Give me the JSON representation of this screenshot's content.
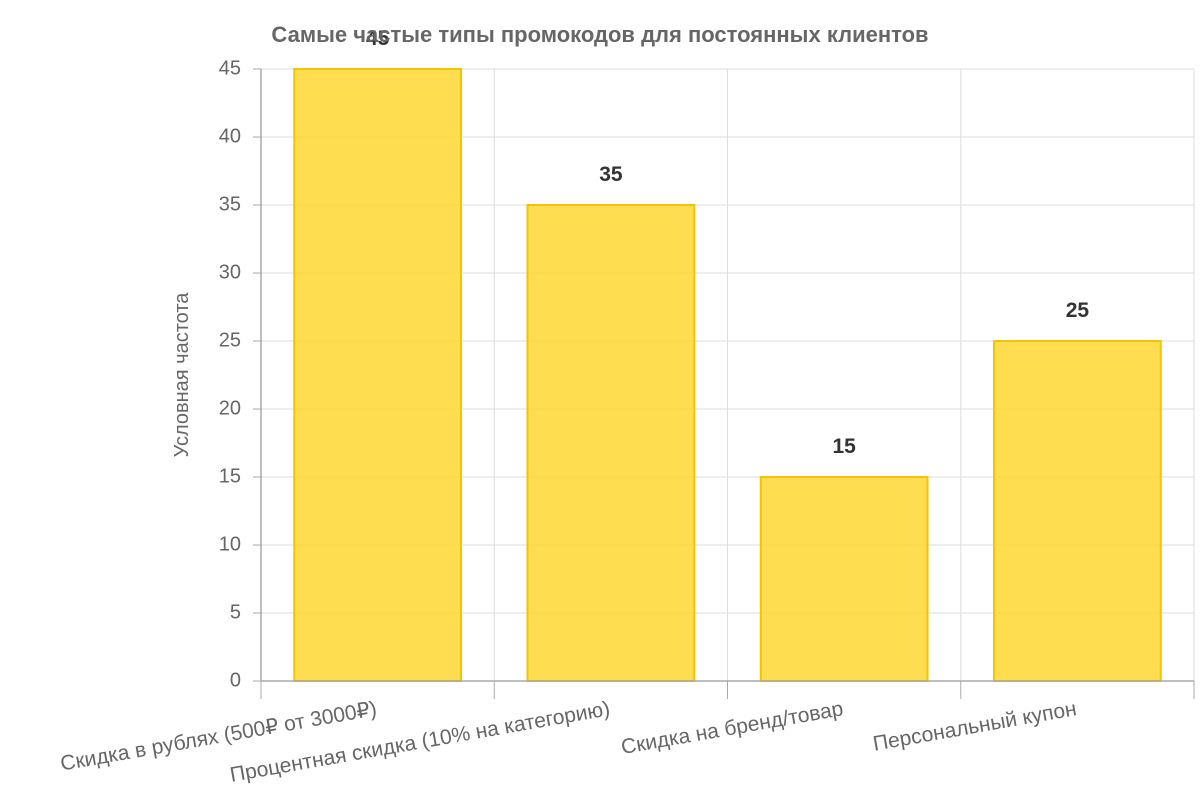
{
  "chart_data": {
    "type": "bar",
    "title": "Самые частые типы промокодов для постоянных клиентов",
    "xlabel": "",
    "ylabel": "Условная частота",
    "categories": [
      "Скидка в рублях (500₽ от 3000₽)",
      "Процентная скидка (10% на категорию)",
      "Скидка на бренд/товар",
      "Персональный купон"
    ],
    "values": [
      45,
      35,
      15,
      25
    ],
    "data_labels": [
      "45",
      "35",
      "15",
      "25"
    ],
    "ylim": [
      0,
      45
    ],
    "yticks": [
      0,
      5,
      10,
      15,
      20,
      25,
      30,
      35,
      40,
      45
    ],
    "grid": true,
    "legend": "none",
    "colors": {
      "bar_fill": "#FFD731",
      "bar_stroke": "#F5C400",
      "grid": "#DDDDDD",
      "axis": "#AAAAAA"
    }
  }
}
